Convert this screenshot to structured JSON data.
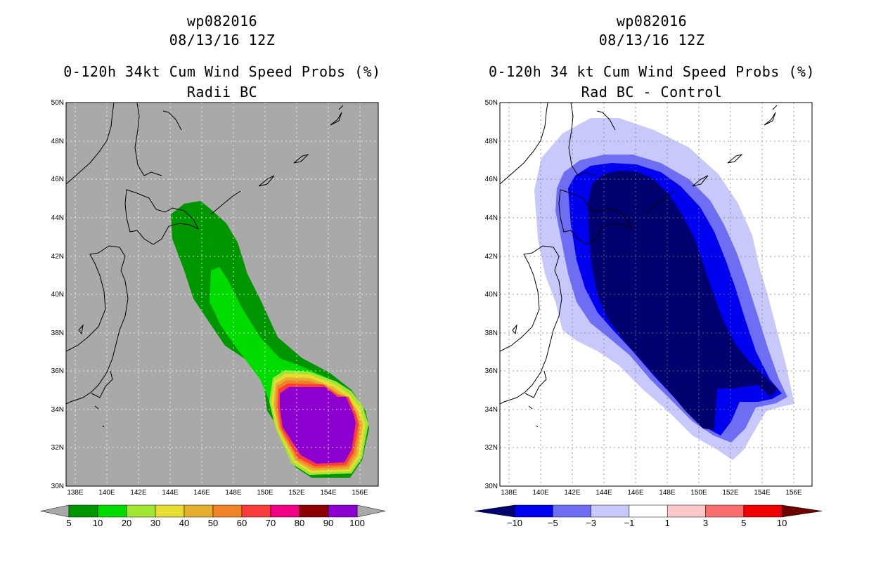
{
  "left": {
    "storm_id": "wp082016",
    "datetime": "08/13/16 12Z",
    "title": "0-120h 34kt Cum Wind Speed Probs (%)",
    "subtitle": "Radii BC",
    "colorbar": {
      "labels": [
        "5",
        "10",
        "20",
        "30",
        "40",
        "50",
        "60",
        "70",
        "80",
        "90",
        "100"
      ],
      "colors": [
        "#009600",
        "#00dc00",
        "#a0e632",
        "#e6dc32",
        "#e6af2d",
        "#f08228",
        "#fa3c3c",
        "#f00082",
        "#8c0000",
        "#8c00d0"
      ]
    }
  },
  "right": {
    "storm_id": "wp082016",
    "datetime": "08/13/16 12Z",
    "title": "0-120h 34 kt Cum Wind Speed Probs (%)",
    "subtitle": "Rad BC - Control",
    "colorbar": {
      "labels": [
        "-10",
        "-5",
        "-3",
        "-1",
        "1",
        "3",
        "5",
        "10"
      ],
      "colors": [
        "#00006e",
        "#0000f0",
        "#6e6ef5",
        "#c8c8fa",
        "#ffffff",
        "#fac8c8",
        "#fa6e6e",
        "#f00000",
        "#6e0000"
      ]
    }
  },
  "axes": {
    "lon_labels": [
      "138E",
      "140E",
      "142E",
      "144E",
      "146E",
      "148E",
      "150E",
      "152E",
      "154E",
      "156E"
    ],
    "lat_labels": [
      "30N",
      "32N",
      "34N",
      "36N",
      "38N",
      "40N",
      "42N",
      "44N",
      "46N",
      "48N",
      "50N"
    ]
  },
  "colors": {
    "map_gray": "#a9a9a9",
    "prob_5": "#009600",
    "prob_10": "#00dc00",
    "prob_high": "#8c00d0",
    "diff_neg10": "#00006e",
    "diff_neg5": "#0000f0",
    "diff_neg3": "#6e6ef5",
    "diff_neg1": "#c8c8fa"
  }
}
